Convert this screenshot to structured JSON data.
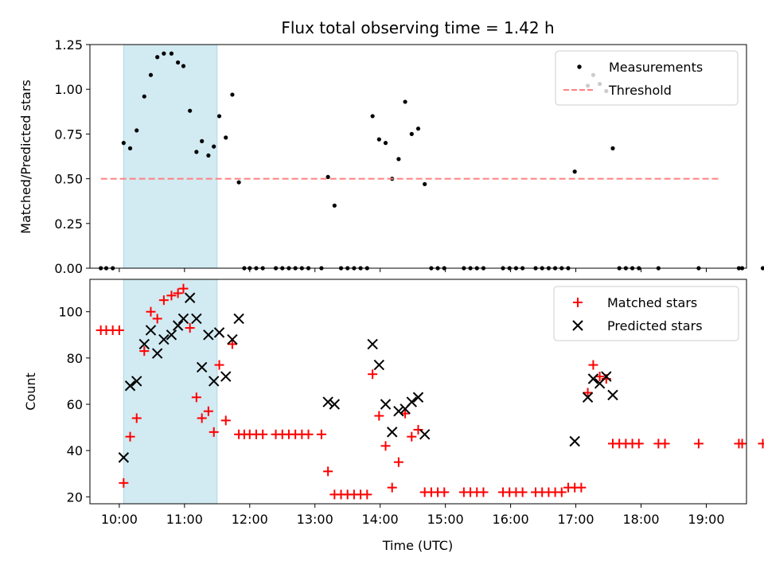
{
  "chart_data": [
    {
      "type": "scatter",
      "title": "Flux total observing time = 1.42 h",
      "xlabel": "",
      "ylabel": "Matched/Predicted stars",
      "xlim": [
        "09:33",
        "19:37"
      ],
      "ylim": [
        0,
        1.25
      ],
      "yticks": [
        "0.00",
        "0.25",
        "0.50",
        "0.75",
        "1.00",
        "1.25"
      ],
      "shaded_span": [
        "10:04",
        "11:30"
      ],
      "legend": {
        "position": "top-right",
        "entries": [
          "Measurements",
          "Threshold"
        ]
      },
      "colors": {
        "measurements": "#000000",
        "threshold": "#ff8080",
        "span": "#add8e6"
      },
      "series": [
        {
          "name": "Measurements",
          "style": "dots",
          "points": [
            [
              "09:43",
              0
            ],
            [
              "09:48",
              0
            ],
            [
              "09:54",
              0
            ],
            [
              "10:04",
              0.7
            ],
            [
              "10:10",
              0.67
            ],
            [
              "10:16",
              0.77
            ],
            [
              "10:23",
              0.96
            ],
            [
              "10:29",
              1.08
            ],
            [
              "10:35",
              1.18
            ],
            [
              "10:41",
              1.2
            ],
            [
              "10:48",
              1.2
            ],
            [
              "10:54",
              1.15
            ],
            [
              "10:59",
              1.13
            ],
            [
              "11:05",
              0.88
            ],
            [
              "11:11",
              0.65
            ],
            [
              "11:16",
              0.71
            ],
            [
              "11:22",
              0.63
            ],
            [
              "11:27",
              0.68
            ],
            [
              "11:32",
              0.85
            ],
            [
              "11:38",
              0.73
            ],
            [
              "11:44",
              0.97
            ],
            [
              "11:50",
              0.48
            ],
            [
              "11:55",
              0
            ],
            [
              "12:00",
              0
            ],
            [
              "12:06",
              0
            ],
            [
              "12:12",
              0
            ],
            [
              "12:24",
              0
            ],
            [
              "12:30",
              0
            ],
            [
              "12:36",
              0
            ],
            [
              "12:42",
              0
            ],
            [
              "12:48",
              0
            ],
            [
              "12:54",
              0
            ],
            [
              "13:06",
              0
            ],
            [
              "13:12",
              0.51
            ],
            [
              "13:18",
              0.35
            ],
            [
              "13:24",
              0
            ],
            [
              "13:30",
              0
            ],
            [
              "13:36",
              0
            ],
            [
              "13:42",
              0
            ],
            [
              "13:48",
              0
            ],
            [
              "13:53",
              0.85
            ],
            [
              "13:59",
              0.72
            ],
            [
              "14:05",
              0.7
            ],
            [
              "14:11",
              0.5
            ],
            [
              "14:17",
              0.61
            ],
            [
              "14:23",
              0.93
            ],
            [
              "14:29",
              0.75
            ],
            [
              "14:35",
              0.78
            ],
            [
              "14:41",
              0.47
            ],
            [
              "14:47",
              0
            ],
            [
              "14:53",
              0
            ],
            [
              "14:59",
              0
            ],
            [
              "15:17",
              0
            ],
            [
              "15:23",
              0
            ],
            [
              "15:29",
              0
            ],
            [
              "15:35",
              0
            ],
            [
              "15:53",
              0
            ],
            [
              "15:59",
              0
            ],
            [
              "16:05",
              0
            ],
            [
              "16:11",
              0
            ],
            [
              "16:23",
              0
            ],
            [
              "16:29",
              0
            ],
            [
              "16:35",
              0
            ],
            [
              "16:41",
              0
            ],
            [
              "16:47",
              0
            ],
            [
              "16:53",
              0
            ],
            [
              "16:59",
              0.54
            ],
            [
              "17:11",
              1.02
            ],
            [
              "17:16",
              1.08
            ],
            [
              "17:22",
              1.03
            ],
            [
              "17:28",
              0.99
            ],
            [
              "17:34",
              0.67
            ],
            [
              "17:40",
              0
            ],
            [
              "17:46",
              0
            ],
            [
              "17:52",
              0
            ],
            [
              "17:58",
              0
            ],
            [
              "18:16",
              0
            ],
            [
              "18:53",
              0
            ],
            [
              "19:30",
              0
            ],
            [
              "19:33",
              0
            ],
            [
              "19:52",
              0
            ]
          ]
        },
        {
          "name": "Threshold",
          "style": "dashed-line",
          "points": [
            [
              "09:43",
              0.5
            ],
            [
              "19:11",
              0.5
            ]
          ]
        }
      ]
    },
    {
      "type": "scatter",
      "title": "",
      "xlabel": "Time (UTC)",
      "ylabel": "Count",
      "xlim": [
        "09:33",
        "19:37"
      ],
      "ylim": [
        17,
        114
      ],
      "yticks": [
        "20",
        "40",
        "60",
        "80",
        "100"
      ],
      "xticks": [
        "10:00",
        "11:00",
        "12:00",
        "13:00",
        "14:00",
        "15:00",
        "16:00",
        "17:00",
        "18:00",
        "19:00"
      ],
      "shaded_span": [
        "10:04",
        "11:30"
      ],
      "legend": {
        "position": "top-right",
        "entries": [
          "Matched stars",
          "Predicted stars"
        ]
      },
      "colors": {
        "matched": "#ff0000",
        "predicted": "#000000",
        "span": "#add8e6"
      },
      "series": [
        {
          "name": "Matched stars",
          "marker": "plus",
          "points": [
            [
              "09:43",
              92
            ],
            [
              "09:48",
              92
            ],
            [
              "09:54",
              92
            ],
            [
              "10:00",
              92
            ],
            [
              "10:04",
              26
            ],
            [
              "10:10",
              46
            ],
            [
              "10:16",
              54
            ],
            [
              "10:23",
              83
            ],
            [
              "10:29",
              100
            ],
            [
              "10:35",
              97
            ],
            [
              "10:41",
              105
            ],
            [
              "10:48",
              107
            ],
            [
              "10:54",
              108
            ],
            [
              "10:59",
              110
            ],
            [
              "11:05",
              93
            ],
            [
              "11:11",
              63
            ],
            [
              "11:16",
              54
            ],
            [
              "11:22",
              57
            ],
            [
              "11:27",
              48
            ],
            [
              "11:32",
              77
            ],
            [
              "11:38",
              53
            ],
            [
              "11:44",
              86
            ],
            [
              "11:50",
              47
            ],
            [
              "11:55",
              47
            ],
            [
              "12:00",
              47
            ],
            [
              "12:06",
              47
            ],
            [
              "12:12",
              47
            ],
            [
              "12:24",
              47
            ],
            [
              "12:30",
              47
            ],
            [
              "12:36",
              47
            ],
            [
              "12:42",
              47
            ],
            [
              "12:48",
              47
            ],
            [
              "12:54",
              47
            ],
            [
              "13:06",
              47
            ],
            [
              "13:12",
              31
            ],
            [
              "13:18",
              21
            ],
            [
              "13:24",
              21
            ],
            [
              "13:30",
              21
            ],
            [
              "13:36",
              21
            ],
            [
              "13:42",
              21
            ],
            [
              "13:48",
              21
            ],
            [
              "13:53",
              73
            ],
            [
              "13:59",
              55
            ],
            [
              "14:05",
              42
            ],
            [
              "14:11",
              24
            ],
            [
              "14:17",
              35
            ],
            [
              "14:23",
              56
            ],
            [
              "14:29",
              46
            ],
            [
              "14:35",
              49
            ],
            [
              "14:41",
              22
            ],
            [
              "14:47",
              22
            ],
            [
              "14:53",
              22
            ],
            [
              "14:59",
              22
            ],
            [
              "15:17",
              22
            ],
            [
              "15:23",
              22
            ],
            [
              "15:29",
              22
            ],
            [
              "15:35",
              22
            ],
            [
              "15:53",
              22
            ],
            [
              "15:59",
              22
            ],
            [
              "16:05",
              22
            ],
            [
              "16:11",
              22
            ],
            [
              "16:23",
              22
            ],
            [
              "16:29",
              22
            ],
            [
              "16:35",
              22
            ],
            [
              "16:41",
              22
            ],
            [
              "16:47",
              22
            ],
            [
              "16:53",
              24
            ],
            [
              "16:59",
              24
            ],
            [
              "17:05",
              24
            ],
            [
              "17:11",
              65
            ],
            [
              "17:16",
              77
            ],
            [
              "17:22",
              72
            ],
            [
              "17:28",
              71
            ],
            [
              "17:34",
              43
            ],
            [
              "17:40",
              43
            ],
            [
              "17:46",
              43
            ],
            [
              "17:52",
              43
            ],
            [
              "17:58",
              43
            ],
            [
              "18:16",
              43
            ],
            [
              "18:22",
              43
            ],
            [
              "18:53",
              43
            ],
            [
              "19:30",
              43
            ],
            [
              "19:33",
              43
            ],
            [
              "19:52",
              43
            ]
          ]
        },
        {
          "name": "Predicted stars",
          "marker": "x",
          "points": [
            [
              "10:04",
              37
            ],
            [
              "10:10",
              68
            ],
            [
              "10:16",
              70
            ],
            [
              "10:23",
              86
            ],
            [
              "10:29",
              92
            ],
            [
              "10:35",
              82
            ],
            [
              "10:41",
              88
            ],
            [
              "10:48",
              90
            ],
            [
              "10:54",
              94
            ],
            [
              "10:59",
              97
            ],
            [
              "11:05",
              106
            ],
            [
              "11:11",
              97
            ],
            [
              "11:16",
              76
            ],
            [
              "11:22",
              90
            ],
            [
              "11:27",
              70
            ],
            [
              "11:32",
              91
            ],
            [
              "11:38",
              72
            ],
            [
              "11:44",
              88
            ],
            [
              "11:50",
              97
            ],
            [
              "13:12",
              61
            ],
            [
              "13:18",
              60
            ],
            [
              "13:53",
              86
            ],
            [
              "13:59",
              77
            ],
            [
              "14:05",
              60
            ],
            [
              "14:11",
              48
            ],
            [
              "14:17",
              57
            ],
            [
              "14:23",
              58
            ],
            [
              "14:29",
              61
            ],
            [
              "14:35",
              63
            ],
            [
              "14:41",
              47
            ],
            [
              "16:59",
              44
            ],
            [
              "17:11",
              63
            ],
            [
              "17:16",
              71
            ],
            [
              "17:22",
              69
            ],
            [
              "17:28",
              72
            ],
            [
              "17:34",
              64
            ]
          ]
        }
      ]
    }
  ]
}
